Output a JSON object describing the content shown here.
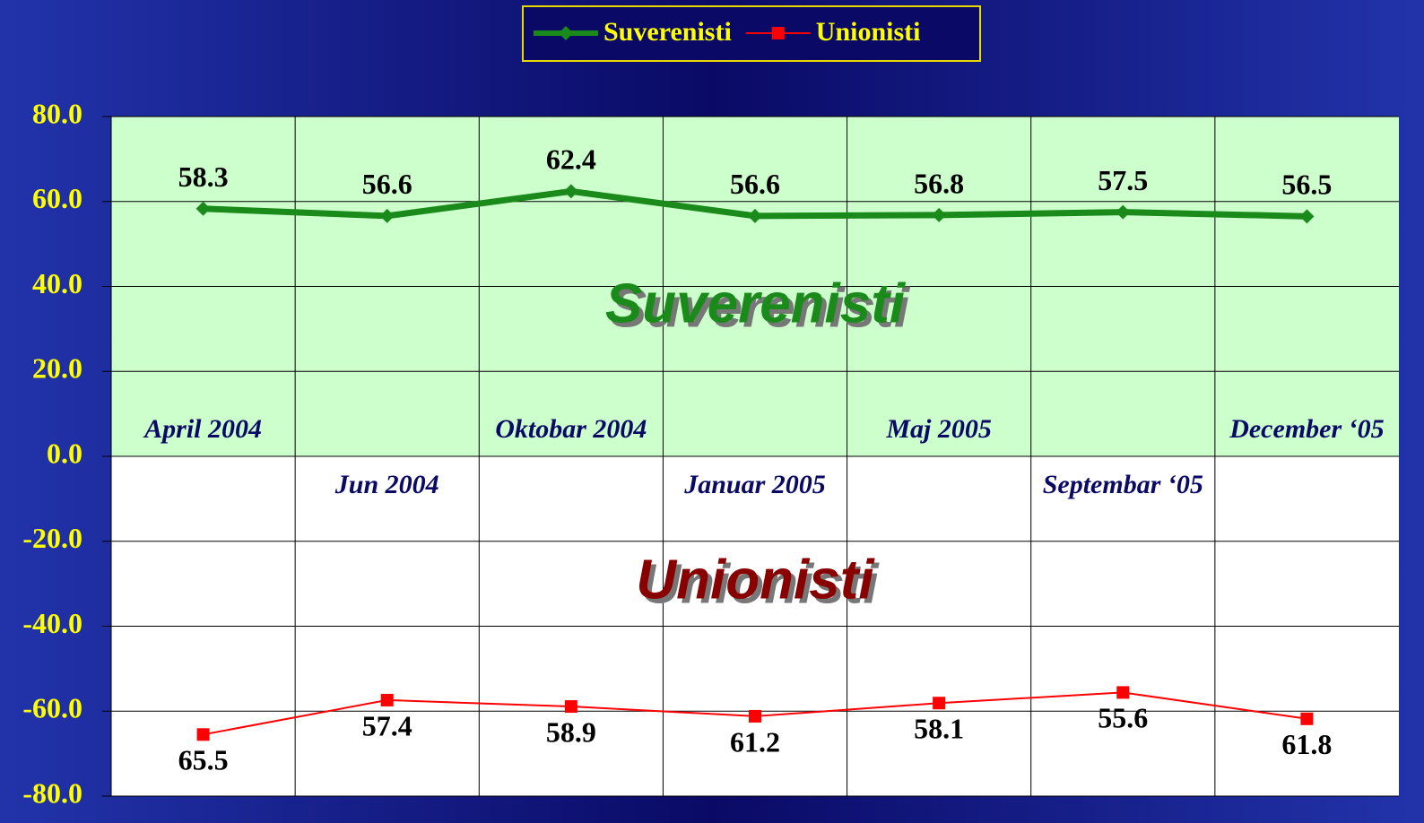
{
  "chart_data": {
    "type": "line",
    "categories": [
      "April 2004",
      "Jun 2004",
      "Oktobar 2004",
      "Januar 2005",
      "Maj 2005",
      "Septembar ‘05",
      "December ‘05"
    ],
    "series": [
      {
        "name": "Suverenisti",
        "color": "#1a8a1a",
        "values": [
          58.3,
          56.6,
          62.4,
          56.6,
          56.8,
          57.5,
          56.5
        ]
      },
      {
        "name": "Unionisti",
        "color": "#ff0000",
        "values": [
          -65.5,
          -57.4,
          -58.9,
          -61.2,
          -58.1,
          -55.6,
          -61.8
        ],
        "value_labels": [
          "65.5",
          "57.4",
          "58.9",
          "61.2",
          "58.1",
          "55.6",
          "61.8"
        ]
      }
    ],
    "annotations": [
      "Suverenisti",
      "Unionisti"
    ],
    "ylim": [
      -80,
      80
    ],
    "yticks": [
      {
        "value": -80,
        "label": "-80.0"
      },
      {
        "value": -60,
        "label": "-60.0"
      },
      {
        "value": -40,
        "label": "-40.0"
      },
      {
        "value": -20,
        "label": "-20.0"
      },
      {
        "value": 0,
        "label": "0.0"
      },
      {
        "value": 20,
        "label": "20.0"
      },
      {
        "value": 40,
        "label": "40.0"
      },
      {
        "value": 60,
        "label": "60.0"
      },
      {
        "value": 80,
        "label": "80.0"
      }
    ],
    "grid": true
  }
}
